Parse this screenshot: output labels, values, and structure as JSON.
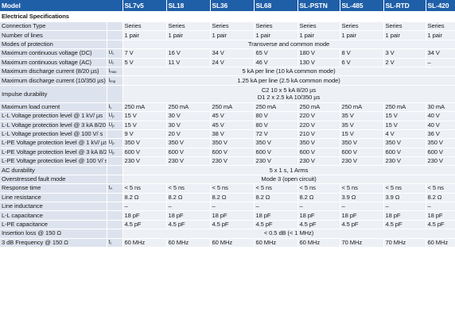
{
  "header": {
    "model": "Model",
    "products": [
      "SL7v5",
      "SL18",
      "SL36",
      "SL68",
      "SL-PSTN",
      "SL-485",
      "SL-RTD",
      "SL-420"
    ]
  },
  "section_title": "Electrical Specifications",
  "rows": [
    {
      "param": "Connection Type",
      "sym": "",
      "sub": "",
      "values": [
        "Series",
        "Series",
        "Series",
        "Series",
        "Series",
        "Series",
        "Series",
        "Series"
      ]
    },
    {
      "param": "Number of lines",
      "sym": "",
      "sub": "",
      "values": [
        "1 pair",
        "1 pair",
        "1 pair",
        "1 pair",
        "1 pair",
        "1 pair",
        "1 pair",
        "1 pair"
      ]
    },
    {
      "param": "Modes of protection",
      "sym": "",
      "sub": "",
      "span": "Transverse and common mode"
    },
    {
      "param": "Maximum continuous voltage (DC)",
      "sym": "U",
      "sub": "c",
      "values": [
        "7 V",
        "16 V",
        "34 V",
        "65 V",
        "180 V",
        "8 V",
        "3 V",
        "34 V"
      ]
    },
    {
      "param": "Maximum continuous voltage (AC)",
      "sym": "U",
      "sub": "c",
      "values": [
        "5 V",
        "11 V",
        "24 V",
        "46 V",
        "130 V",
        "6 V",
        "2 V",
        "–"
      ]
    },
    {
      "param": "Maximum discharge current (8/20 µs)",
      "sym": "I",
      "sub": "max",
      "span": "5 kA per line (10 kA common mode)"
    },
    {
      "param": "Maximum discharge current (10/350 µs)",
      "sym": "I",
      "sub": "imp",
      "span": "1.25 kA per line (2.5 kA common mode)"
    },
    {
      "param": "Impulse durability",
      "sym": "",
      "sub": "",
      "tall": true,
      "span": "C2 10 x 5 kA 8/20 µs",
      "span2": "D1 2 x 2.5 kA 10/350 µs"
    },
    {
      "param": "Maximum load current",
      "sym": "I",
      "sub": "L",
      "values": [
        "250 mA",
        "250 mA",
        "250 mA",
        "250 mA",
        "250 mA",
        "250 mA",
        "250 mA",
        "30 mA"
      ]
    },
    {
      "param": "L-L Voltage protection level @ 1 kV/ µs",
      "sym": "U",
      "sub": "p",
      "values": [
        "15 V",
        "30 V",
        "45 V",
        "80 V",
        "220 V",
        "35 V",
        "15 V",
        "40 V"
      ]
    },
    {
      "param": "L-L Voltage protection level @ 3 kA 8/20 µs",
      "sym": "U",
      "sub": "p",
      "values": [
        "15 V",
        "30 V",
        "45 V",
        "80 V",
        "220 V",
        "35 V",
        "15 V",
        "40 V"
      ]
    },
    {
      "param": "L-L Voltage protection level @ 100 V/ s",
      "sym": "",
      "sub": "",
      "values": [
        "9 V",
        "20 V",
        "38 V",
        "72 V",
        "210 V",
        "15 V",
        "4 V",
        "36 V"
      ]
    },
    {
      "param": "L-PE Voltage protection level @ 1 kV/ µs",
      "sym": "U",
      "sub": "p",
      "values": [
        "350 V",
        "350 V",
        "350 V",
        "350 V",
        "350 V",
        "350 V",
        "350 V",
        "350 V"
      ]
    },
    {
      "param": "L-PE Voltage protection level @ 3 kA 8/20 µs",
      "sym": "U",
      "sub": "p",
      "values": [
        "600 V",
        "600 V",
        "600 V",
        "600 V",
        "600 V",
        "600 V",
        "600 V",
        "600 V"
      ]
    },
    {
      "param": "L-PE Voltage protection level @ 100 V/ s",
      "sym": "",
      "sub": "",
      "values": [
        "230 V",
        "230 V",
        "230 V",
        "230 V",
        "230 V",
        "230 V",
        "230 V",
        "230 V"
      ]
    },
    {
      "param": "AC durability",
      "sym": "",
      "sub": "",
      "span": "5 x 1 s, 1 Arms"
    },
    {
      "param": "Overstressed fault mode",
      "sym": "",
      "sub": "",
      "span": "Mode 3 (open circuit)"
    },
    {
      "param": "Response time",
      "sym": "t",
      "sub": "A",
      "values": [
        "< 5 ns",
        "< 5 ns",
        "< 5 ns",
        "< 5 ns",
        "< 5 ns",
        "< 5 ns",
        "< 5 ns",
        "< 5 ns"
      ]
    },
    {
      "param": "Line resistance",
      "sym": "",
      "sub": "",
      "values": [
        "8.2 Ω",
        "8.2 Ω",
        "8.2 Ω",
        "8.2 Ω",
        "8.2 Ω",
        "3.9 Ω",
        "3.9 Ω",
        "8.2 Ω"
      ]
    },
    {
      "param": "Line inductance",
      "sym": "",
      "sub": "",
      "values": [
        "–",
        "–",
        "–",
        "–",
        "–",
        "–",
        "–",
        "–"
      ]
    },
    {
      "param": "L-L capacitance",
      "sym": "",
      "sub": "",
      "values": [
        "18 pF",
        "18 pF",
        "18 pF",
        "18 pF",
        "18 pF",
        "18 pF",
        "18 pF",
        "18 pF"
      ]
    },
    {
      "param": "L-PE capacitance",
      "sym": "",
      "sub": "",
      "values": [
        "4.5 pF",
        "4.5 pF",
        "4.5 pF",
        "4.5 pF",
        "4.5 pF",
        "4.5 pF",
        "4.5 pF",
        "4.5 pF"
      ]
    },
    {
      "param": "Insertion loss @ 150 Ω",
      "sym": "",
      "sub": "",
      "span": "< 0.5 dB (< 1 MHz)"
    },
    {
      "param": "3 dB Frequency @ 150 Ω",
      "sym": "f",
      "sub": "c",
      "values": [
        "60 MHz",
        "60 MHz",
        "60 MHz",
        "60 MHz",
        "60 MHz",
        "70 MHz",
        "70 MHz",
        "60 MHz"
      ]
    }
  ]
}
